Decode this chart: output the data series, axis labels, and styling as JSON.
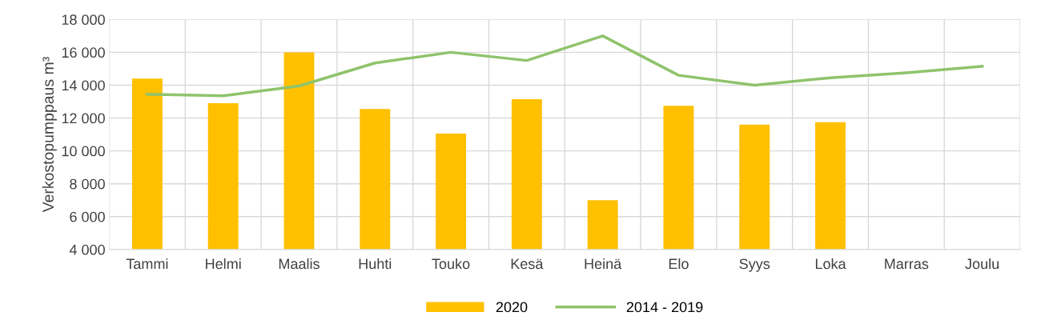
{
  "chart_data": {
    "type": "bar",
    "ylabel": "Verkostopumppaus m³",
    "categories": [
      "Tammi",
      "Helmi",
      "Maalis",
      "Huhti",
      "Touko",
      "Kesä",
      "Heinä",
      "Elo",
      "Syys",
      "Loka",
      "Marras",
      "Joulu"
    ],
    "series": [
      {
        "name": "2020",
        "color": "#ffc000",
        "values": [
          14400,
          12900,
          16000,
          12550,
          11050,
          13150,
          7000,
          12750,
          11600,
          11750,
          null,
          null
        ]
      },
      {
        "name": "2014 - 2019",
        "type": "line",
        "color": "#8fc36c",
        "values": [
          13450,
          13350,
          13950,
          15350,
          16000,
          15500,
          17000,
          14600,
          14000,
          14450,
          14750,
          15150
        ]
      }
    ],
    "ylim": [
      4000,
      18000
    ],
    "yticks": [
      {
        "value": 4000,
        "label": "4 000"
      },
      {
        "value": 6000,
        "label": "6 000"
      },
      {
        "value": 8000,
        "label": "8 000"
      },
      {
        "value": 10000,
        "label": "10 000"
      },
      {
        "value": 12000,
        "label": "12 000"
      },
      {
        "value": 14000,
        "label": "14 000"
      },
      {
        "value": 16000,
        "label": "16 000"
      },
      {
        "value": 18000,
        "label": "18 000"
      }
    ],
    "grid": true,
    "legend": "bottom",
    "marker": "none",
    "line_style": "solid"
  }
}
